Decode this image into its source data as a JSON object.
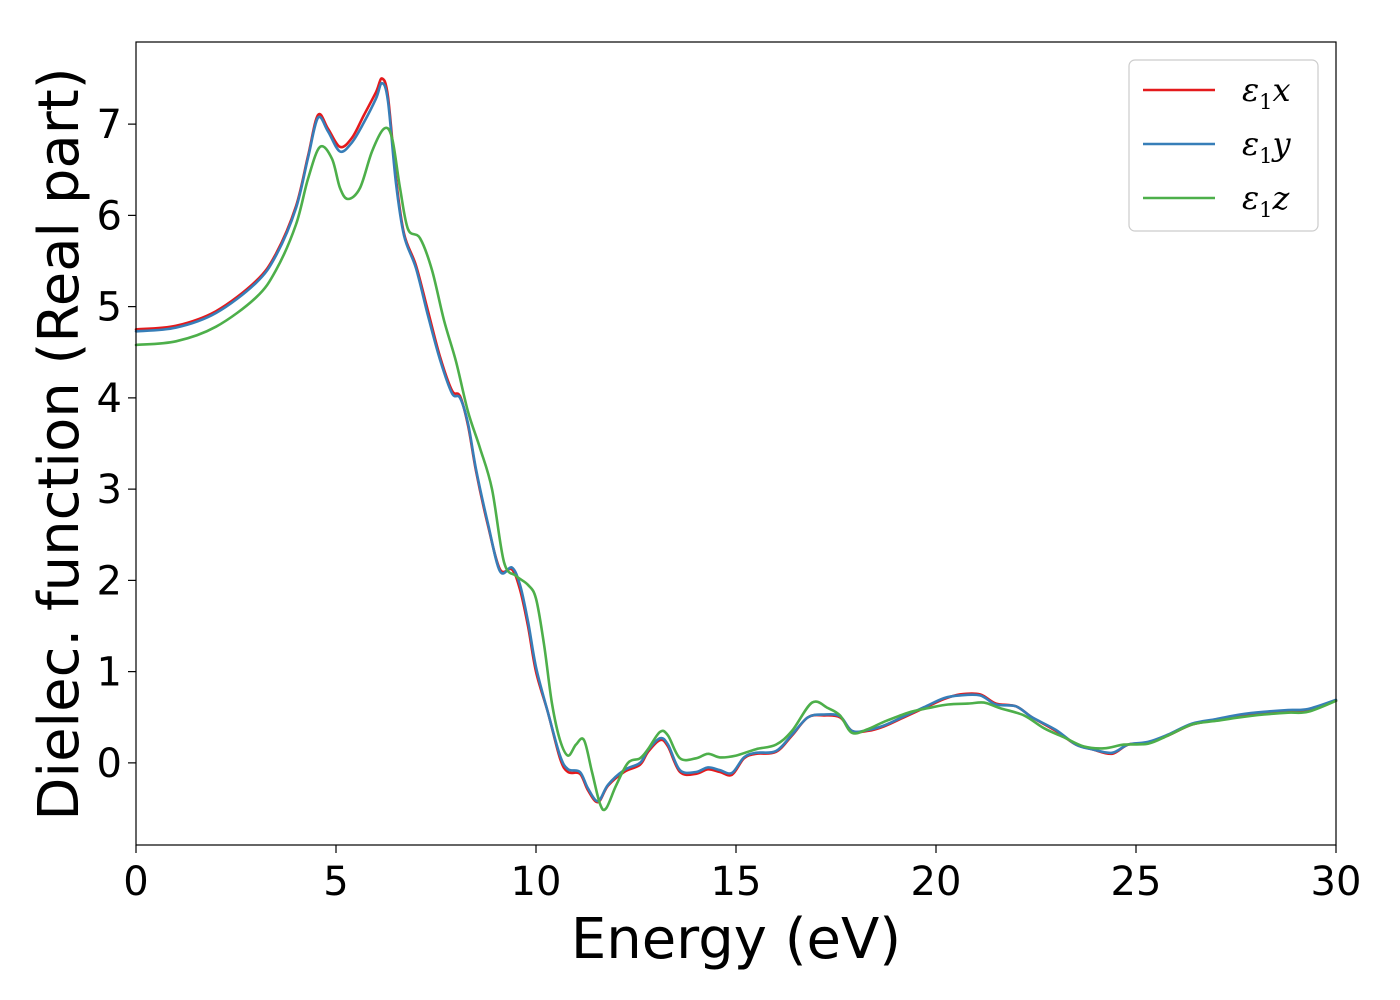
{
  "chart_data": {
    "type": "line",
    "title": "",
    "xlabel": "Energy (eV)",
    "ylabel": "Dielec. function (Real part)",
    "xlim": [
      0,
      30
    ],
    "ylim": [
      -0.9,
      7.9
    ],
    "xticks": [
      0,
      5,
      10,
      15,
      20,
      25,
      30
    ],
    "xtick_labels": [
      "0",
      "5",
      "10",
      "15",
      "20",
      "25",
      "30"
    ],
    "yticks": [
      0,
      1,
      2,
      3,
      4,
      5,
      6,
      7
    ],
    "ytick_labels": [
      "0",
      "1",
      "2",
      "3",
      "4",
      "5",
      "6",
      "7"
    ],
    "grid": false,
    "legend_position": "top-right",
    "series": [
      {
        "name": "ε1x",
        "label_main": "ε",
        "label_sub": "1",
        "label_suffix": "x",
        "color": "#e41a1c",
        "points": [
          [
            0,
            4.75
          ],
          [
            1,
            4.79
          ],
          [
            2,
            4.95
          ],
          [
            3,
            5.28
          ],
          [
            3.5,
            5.58
          ],
          [
            4,
            6.1
          ],
          [
            4.3,
            6.65
          ],
          [
            4.55,
            7.1
          ],
          [
            4.8,
            6.95
          ],
          [
            5.1,
            6.75
          ],
          [
            5.4,
            6.85
          ],
          [
            5.7,
            7.1
          ],
          [
            6,
            7.35
          ],
          [
            6.15,
            7.5
          ],
          [
            6.3,
            7.3
          ],
          [
            6.5,
            6.4
          ],
          [
            6.7,
            5.8
          ],
          [
            7,
            5.45
          ],
          [
            7.3,
            4.95
          ],
          [
            7.6,
            4.45
          ],
          [
            7.9,
            4.08
          ],
          [
            8.1,
            4.02
          ],
          [
            8.3,
            3.7
          ],
          [
            8.5,
            3.2
          ],
          [
            8.8,
            2.6
          ],
          [
            9.1,
            2.12
          ],
          [
            9.4,
            2.12
          ],
          [
            9.6,
            1.9
          ],
          [
            9.8,
            1.5
          ],
          [
            10,
            1.0
          ],
          [
            10.3,
            0.55
          ],
          [
            10.6,
            0.05
          ],
          [
            10.8,
            -0.1
          ],
          [
            11.1,
            -0.12
          ],
          [
            11.3,
            -0.3
          ],
          [
            11.55,
            -0.43
          ],
          [
            11.8,
            -0.25
          ],
          [
            12.2,
            -0.1
          ],
          [
            12.6,
            -0.02
          ],
          [
            12.8,
            0.12
          ],
          [
            13.1,
            0.25
          ],
          [
            13.3,
            0.18
          ],
          [
            13.6,
            -0.1
          ],
          [
            14,
            -0.12
          ],
          [
            14.3,
            -0.07
          ],
          [
            14.6,
            -0.1
          ],
          [
            14.9,
            -0.13
          ],
          [
            15.2,
            0.05
          ],
          [
            15.5,
            0.1
          ],
          [
            16,
            0.12
          ],
          [
            16.4,
            0.3
          ],
          [
            16.8,
            0.5
          ],
          [
            17.2,
            0.52
          ],
          [
            17.6,
            0.5
          ],
          [
            17.9,
            0.35
          ],
          [
            18.3,
            0.35
          ],
          [
            18.7,
            0.4
          ],
          [
            19.2,
            0.5
          ],
          [
            19.7,
            0.6
          ],
          [
            20.2,
            0.7
          ],
          [
            20.6,
            0.75
          ],
          [
            21.1,
            0.75
          ],
          [
            21.5,
            0.65
          ],
          [
            22,
            0.62
          ],
          [
            22.4,
            0.5
          ],
          [
            23,
            0.35
          ],
          [
            23.5,
            0.2
          ],
          [
            23.9,
            0.15
          ],
          [
            24.4,
            0.1
          ],
          [
            24.8,
            0.2
          ],
          [
            25.3,
            0.22
          ],
          [
            25.8,
            0.3
          ],
          [
            26.4,
            0.42
          ],
          [
            27,
            0.47
          ],
          [
            27.6,
            0.52
          ],
          [
            28.2,
            0.55
          ],
          [
            28.8,
            0.57
          ],
          [
            29.3,
            0.58
          ],
          [
            30,
            0.68
          ]
        ]
      },
      {
        "name": "ε1y",
        "label_main": "ε",
        "label_sub": "1",
        "label_suffix": "y",
        "color": "#377eb8",
        "points": [
          [
            0,
            4.73
          ],
          [
            1,
            4.77
          ],
          [
            2,
            4.93
          ],
          [
            3,
            5.26
          ],
          [
            3.5,
            5.56
          ],
          [
            4,
            6.08
          ],
          [
            4.3,
            6.63
          ],
          [
            4.55,
            7.07
          ],
          [
            4.8,
            6.92
          ],
          [
            5.1,
            6.7
          ],
          [
            5.4,
            6.8
          ],
          [
            5.7,
            7.02
          ],
          [
            6,
            7.28
          ],
          [
            6.15,
            7.45
          ],
          [
            6.3,
            7.25
          ],
          [
            6.5,
            6.35
          ],
          [
            6.7,
            5.78
          ],
          [
            7,
            5.42
          ],
          [
            7.3,
            4.9
          ],
          [
            7.6,
            4.42
          ],
          [
            7.9,
            4.05
          ],
          [
            8.1,
            4.0
          ],
          [
            8.3,
            3.72
          ],
          [
            8.5,
            3.22
          ],
          [
            8.8,
            2.62
          ],
          [
            9.1,
            2.1
          ],
          [
            9.4,
            2.14
          ],
          [
            9.6,
            1.95
          ],
          [
            9.8,
            1.55
          ],
          [
            10,
            1.05
          ],
          [
            10.3,
            0.55
          ],
          [
            10.6,
            0.08
          ],
          [
            10.8,
            -0.07
          ],
          [
            11.1,
            -0.1
          ],
          [
            11.3,
            -0.28
          ],
          [
            11.55,
            -0.42
          ],
          [
            11.8,
            -0.24
          ],
          [
            12.2,
            -0.08
          ],
          [
            12.6,
            0.0
          ],
          [
            12.8,
            0.14
          ],
          [
            13.1,
            0.27
          ],
          [
            13.3,
            0.2
          ],
          [
            13.6,
            -0.08
          ],
          [
            14,
            -0.1
          ],
          [
            14.3,
            -0.05
          ],
          [
            14.6,
            -0.08
          ],
          [
            14.9,
            -0.11
          ],
          [
            15.2,
            0.06
          ],
          [
            15.5,
            0.11
          ],
          [
            16,
            0.13
          ],
          [
            16.4,
            0.31
          ],
          [
            16.8,
            0.5
          ],
          [
            17.2,
            0.53
          ],
          [
            17.6,
            0.51
          ],
          [
            17.9,
            0.35
          ],
          [
            18.3,
            0.36
          ],
          [
            18.7,
            0.41
          ],
          [
            19.2,
            0.51
          ],
          [
            19.7,
            0.61
          ],
          [
            20.2,
            0.71
          ],
          [
            20.6,
            0.74
          ],
          [
            21.1,
            0.74
          ],
          [
            21.5,
            0.64
          ],
          [
            22,
            0.62
          ],
          [
            22.4,
            0.5
          ],
          [
            23,
            0.36
          ],
          [
            23.5,
            0.2
          ],
          [
            23.9,
            0.15
          ],
          [
            24.4,
            0.11
          ],
          [
            24.8,
            0.2
          ],
          [
            25.3,
            0.23
          ],
          [
            25.8,
            0.31
          ],
          [
            26.4,
            0.43
          ],
          [
            27,
            0.48
          ],
          [
            27.6,
            0.53
          ],
          [
            28.2,
            0.56
          ],
          [
            28.8,
            0.58
          ],
          [
            29.3,
            0.59
          ],
          [
            30,
            0.69
          ]
        ]
      },
      {
        "name": "ε1z",
        "label_main": "ε",
        "label_sub": "1",
        "label_suffix": "z",
        "color": "#4daf4a",
        "points": [
          [
            0,
            4.58
          ],
          [
            1,
            4.62
          ],
          [
            2,
            4.78
          ],
          [
            3,
            5.1
          ],
          [
            3.5,
            5.4
          ],
          [
            4,
            5.9
          ],
          [
            4.3,
            6.4
          ],
          [
            4.6,
            6.75
          ],
          [
            4.9,
            6.62
          ],
          [
            5.1,
            6.3
          ],
          [
            5.3,
            6.18
          ],
          [
            5.6,
            6.3
          ],
          [
            5.9,
            6.7
          ],
          [
            6.2,
            6.95
          ],
          [
            6.4,
            6.85
          ],
          [
            6.6,
            6.3
          ],
          [
            6.8,
            5.85
          ],
          [
            7.1,
            5.75
          ],
          [
            7.4,
            5.4
          ],
          [
            7.7,
            4.85
          ],
          [
            8,
            4.4
          ],
          [
            8.3,
            3.85
          ],
          [
            8.6,
            3.45
          ],
          [
            8.9,
            3.0
          ],
          [
            9.2,
            2.2
          ],
          [
            9.5,
            2.05
          ],
          [
            9.8,
            1.95
          ],
          [
            10,
            1.8
          ],
          [
            10.2,
            1.3
          ],
          [
            10.4,
            0.65
          ],
          [
            10.6,
            0.25
          ],
          [
            10.8,
            0.08
          ],
          [
            11,
            0.2
          ],
          [
            11.2,
            0.25
          ],
          [
            11.4,
            -0.1
          ],
          [
            11.6,
            -0.45
          ],
          [
            11.75,
            -0.5
          ],
          [
            12,
            -0.25
          ],
          [
            12.3,
            0.0
          ],
          [
            12.6,
            0.05
          ],
          [
            12.8,
            0.15
          ],
          [
            13.1,
            0.34
          ],
          [
            13.3,
            0.3
          ],
          [
            13.6,
            0.05
          ],
          [
            14,
            0.05
          ],
          [
            14.3,
            0.1
          ],
          [
            14.6,
            0.06
          ],
          [
            15,
            0.08
          ],
          [
            15.5,
            0.15
          ],
          [
            16,
            0.2
          ],
          [
            16.4,
            0.35
          ],
          [
            16.9,
            0.66
          ],
          [
            17.3,
            0.6
          ],
          [
            17.6,
            0.52
          ],
          [
            17.9,
            0.33
          ],
          [
            18.3,
            0.37
          ],
          [
            18.7,
            0.45
          ],
          [
            19.3,
            0.55
          ],
          [
            19.8,
            0.6
          ],
          [
            20.3,
            0.64
          ],
          [
            20.8,
            0.65
          ],
          [
            21.2,
            0.66
          ],
          [
            21.6,
            0.6
          ],
          [
            22.2,
            0.52
          ],
          [
            22.7,
            0.38
          ],
          [
            23.2,
            0.28
          ],
          [
            23.7,
            0.18
          ],
          [
            24.2,
            0.16
          ],
          [
            24.7,
            0.2
          ],
          [
            25.3,
            0.21
          ],
          [
            25.8,
            0.3
          ],
          [
            26.4,
            0.42
          ],
          [
            27,
            0.46
          ],
          [
            27.6,
            0.5
          ],
          [
            28.2,
            0.53
          ],
          [
            28.8,
            0.55
          ],
          [
            29.3,
            0.56
          ],
          [
            30,
            0.68
          ]
        ]
      }
    ]
  }
}
